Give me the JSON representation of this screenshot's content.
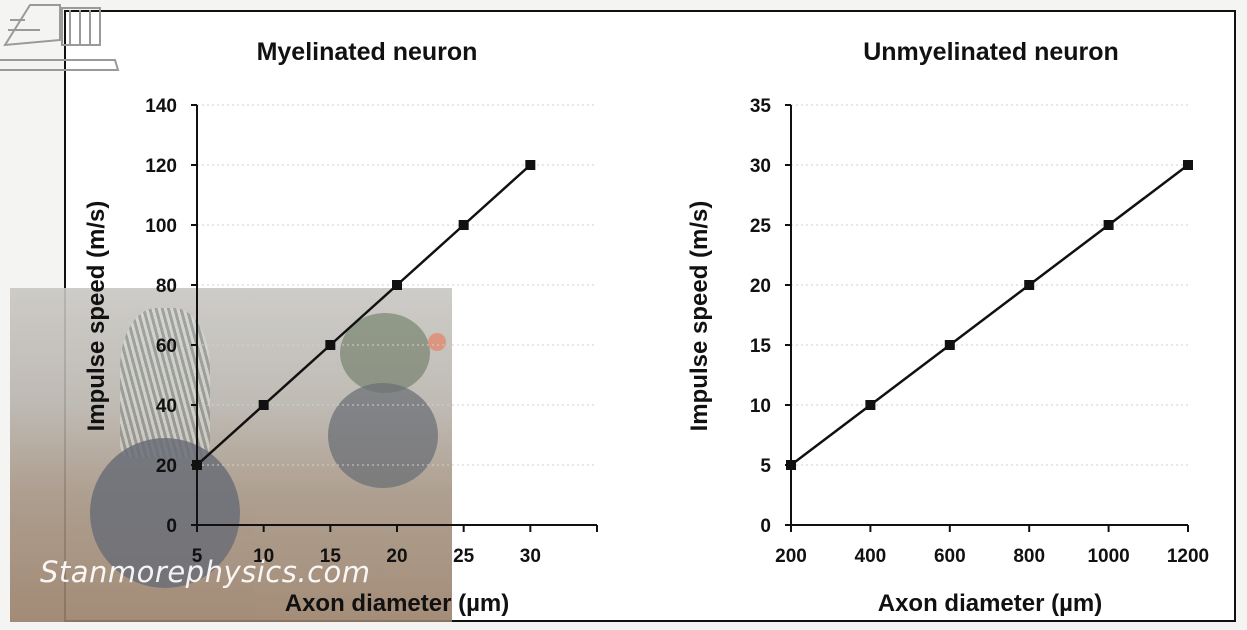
{
  "watermark": "Stanmorephysics.com",
  "chart_data": [
    {
      "type": "line",
      "title": "Myelinated neuron",
      "xlabel": "Axon diameter (µm)",
      "ylabel": "Impulse speed (m/s)",
      "x": [
        5,
        10,
        15,
        20,
        25,
        30
      ],
      "values": [
        20,
        40,
        60,
        80,
        100,
        120
      ],
      "xticks": [
        5,
        10,
        15,
        20,
        25,
        30
      ],
      "yticks": [
        0,
        20,
        40,
        60,
        80,
        100,
        120,
        140
      ],
      "xlim": [
        5,
        35
      ],
      "ylim": [
        0,
        140
      ],
      "grid": true,
      "marker": "square"
    },
    {
      "type": "line",
      "title": "Unmyelinated neuron",
      "xlabel": "Axon diameter (µm)",
      "ylabel": "Impulse speed (m/s)",
      "x": [
        200,
        400,
        600,
        800,
        1000,
        1200
      ],
      "values": [
        5,
        10,
        15,
        20,
        25,
        30
      ],
      "xticks": [
        200,
        400,
        600,
        800,
        1000,
        1200
      ],
      "yticks": [
        0,
        5,
        10,
        15,
        20,
        25,
        30,
        35
      ],
      "xlim": [
        200,
        1200
      ],
      "ylim": [
        0,
        35
      ],
      "grid": true,
      "marker": "square"
    }
  ]
}
